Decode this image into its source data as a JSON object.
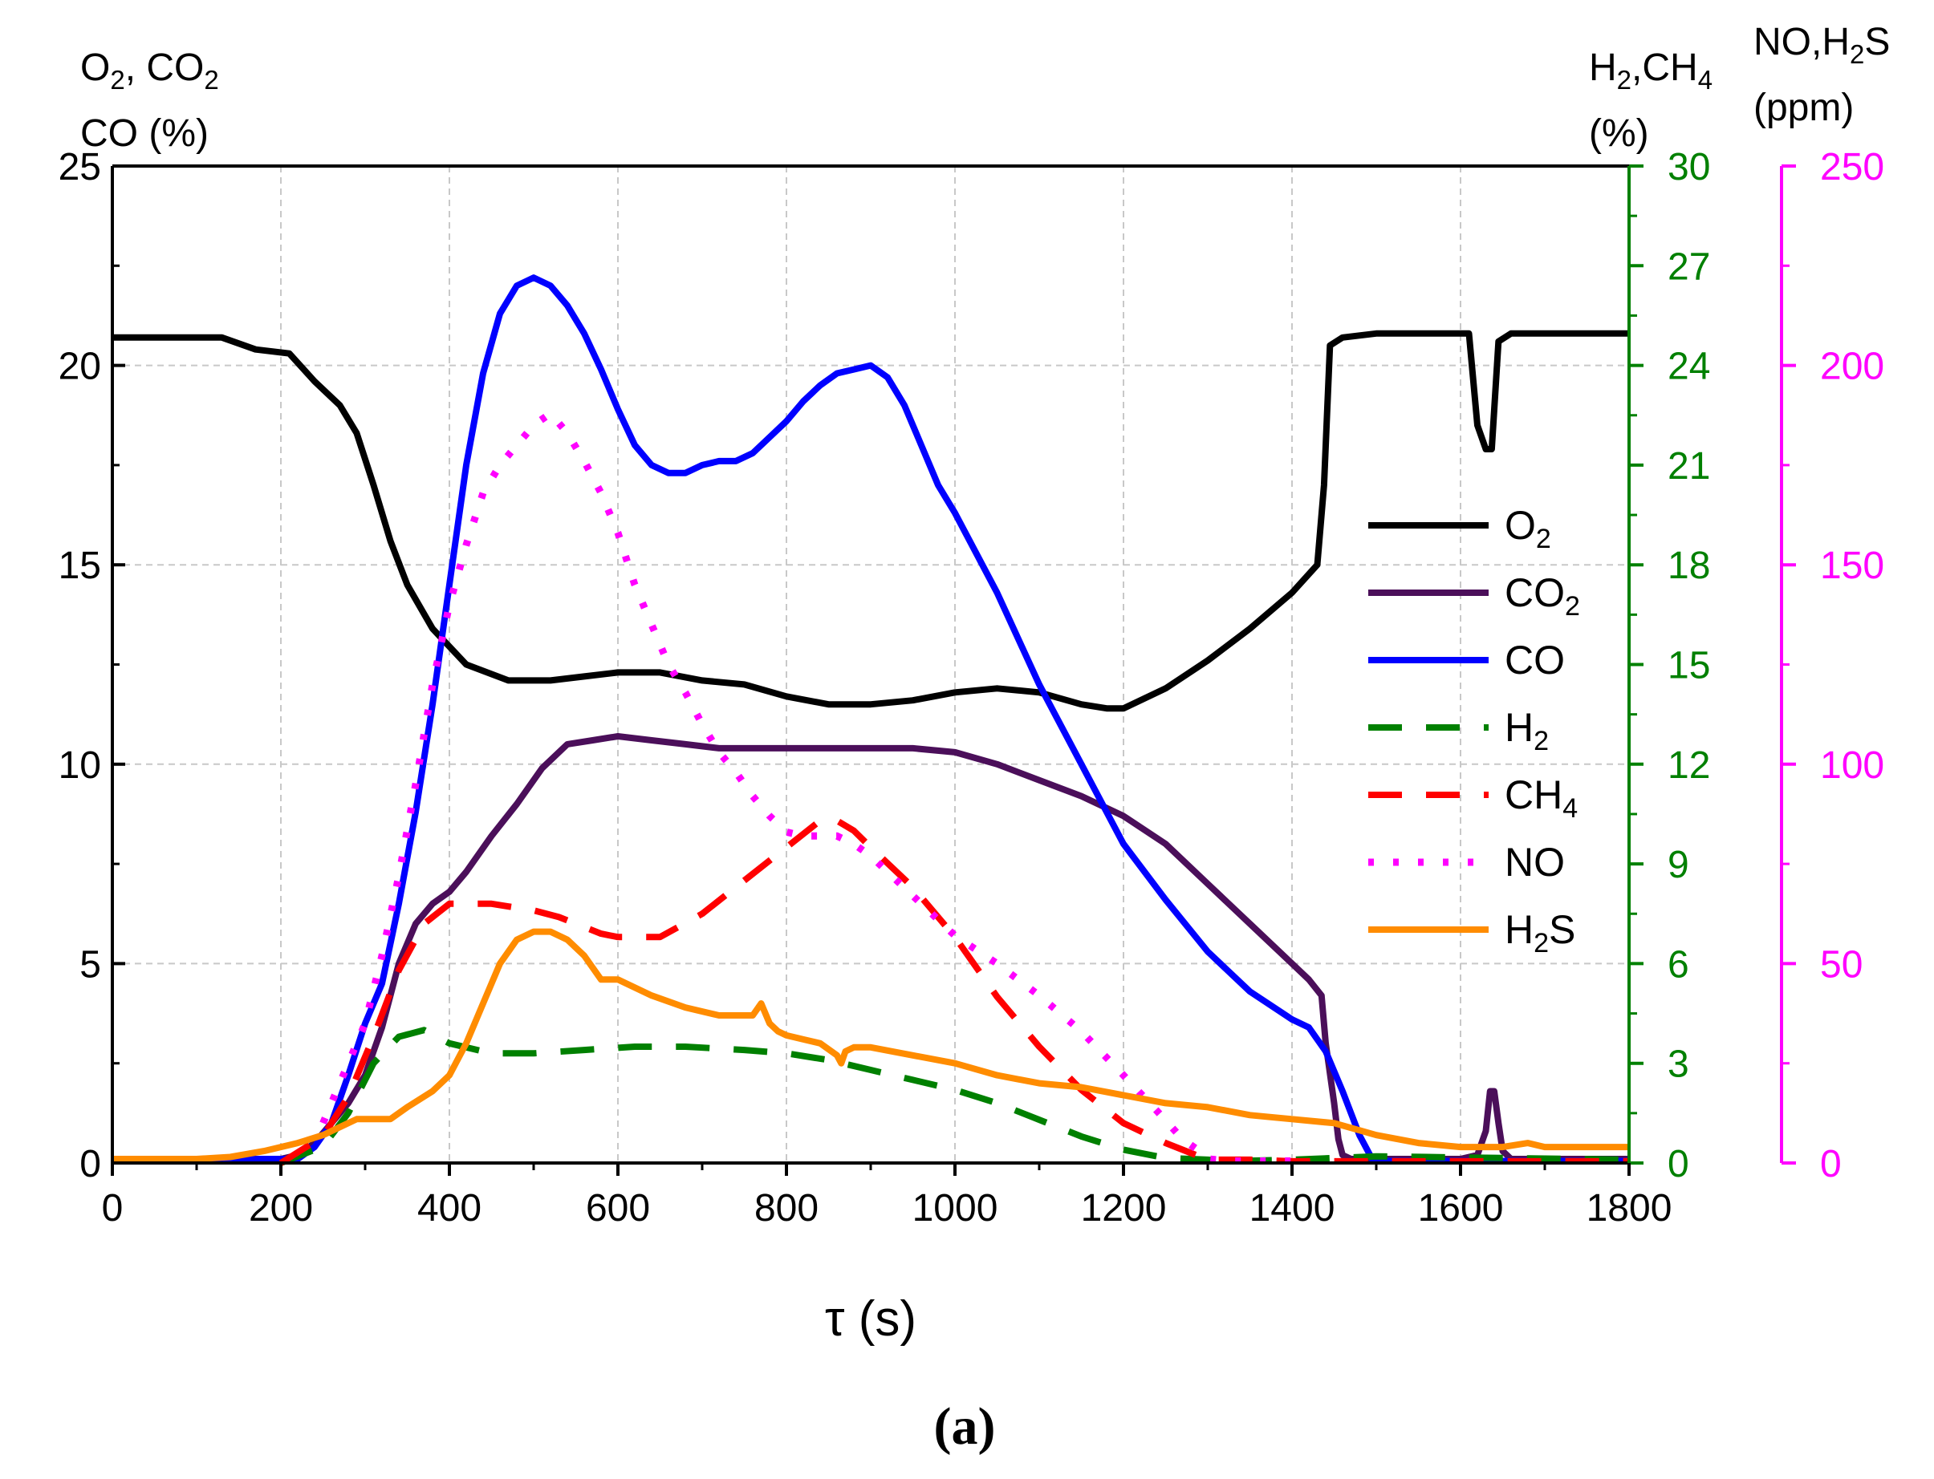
{
  "chart_data": {
    "type": "line",
    "panel_label": "(a)",
    "xlabel": "τ (s)",
    "xlim": [
      0,
      1800
    ],
    "x_ticks": [
      "0",
      "200",
      "400",
      "600",
      "800",
      "1000",
      "1200",
      "1400",
      "1600",
      "1800"
    ],
    "grid": true,
    "legend_position": "center-right",
    "axes": {
      "left": {
        "label_line1": {
          "parts": [
            {
              "t": "O",
              "sub": false
            },
            {
              "t": "2",
              "sub": true
            },
            {
              "t": ", CO",
              "sub": false
            },
            {
              "t": "2",
              "sub": true
            }
          ]
        },
        "label_line2": "CO (%)",
        "ylim": [
          0,
          25
        ],
        "ticks": [
          "0",
          "5",
          "10",
          "15",
          "20",
          "25"
        ],
        "color": "#000000"
      },
      "right1": {
        "label_line1": {
          "parts": [
            {
              "t": "H",
              "sub": false
            },
            {
              "t": "2",
              "sub": true
            },
            {
              "t": ",CH",
              "sub": false
            },
            {
              "t": "4",
              "sub": true
            }
          ]
        },
        "label_line2": "(%)",
        "ylim": [
          0,
          30
        ],
        "ticks": [
          "0",
          "3",
          "6",
          "9",
          "12",
          "15",
          "18",
          "21",
          "24",
          "27",
          "30"
        ],
        "color": "#008000"
      },
      "right2": {
        "label_line1": {
          "parts": [
            {
              "t": "NO,H",
              "sub": false
            },
            {
              "t": "2",
              "sub": true
            },
            {
              "t": "S",
              "sub": false
            }
          ]
        },
        "label_line2": "(ppm)",
        "ylim": [
          0,
          250
        ],
        "ticks": [
          "0",
          "50",
          "100",
          "150",
          "200",
          "250"
        ],
        "color": "#ff00ff"
      }
    },
    "series": [
      {
        "name": "O2",
        "legend_parts": [
          {
            "t": "O",
            "sub": false
          },
          {
            "t": "2",
            "sub": true
          }
        ],
        "axis": "left",
        "color": "#000000",
        "dash": "solid",
        "x": [
          0,
          130,
          170,
          210,
          240,
          270,
          290,
          310,
          330,
          350,
          380,
          420,
          470,
          520,
          560,
          600,
          650,
          700,
          750,
          800,
          850,
          900,
          950,
          1000,
          1050,
          1100,
          1150,
          1180,
          1200,
          1250,
          1300,
          1350,
          1400,
          1430,
          1438,
          1445,
          1460,
          1500,
          1600,
          1610,
          1620,
          1630,
          1637,
          1645,
          1660,
          1800
        ],
        "y": [
          20.7,
          20.7,
          20.4,
          20.3,
          19.6,
          19.0,
          18.3,
          17.0,
          15.6,
          14.5,
          13.4,
          12.5,
          12.1,
          12.1,
          12.2,
          12.3,
          12.3,
          12.1,
          12.0,
          11.7,
          11.5,
          11.5,
          11.6,
          11.8,
          11.9,
          11.8,
          11.5,
          11.4,
          11.4,
          11.9,
          12.6,
          13.4,
          14.3,
          15.0,
          17.0,
          20.5,
          20.7,
          20.8,
          20.8,
          20.8,
          18.5,
          17.9,
          17.9,
          20.6,
          20.8,
          20.8
        ]
      },
      {
        "name": "CO2",
        "legend_parts": [
          {
            "t": "CO",
            "sub": false
          },
          {
            "t": "2",
            "sub": true
          }
        ],
        "axis": "left",
        "color": "#4b0f5a",
        "dash": "solid",
        "x": [
          0,
          200,
          220,
          240,
          260,
          280,
          300,
          320,
          340,
          360,
          380,
          400,
          420,
          450,
          480,
          510,
          540,
          570,
          600,
          640,
          680,
          720,
          760,
          800,
          850,
          900,
          950,
          1000,
          1050,
          1100,
          1150,
          1200,
          1250,
          1300,
          1350,
          1400,
          1420,
          1435,
          1440,
          1450,
          1455,
          1460,
          1470,
          1600,
          1620,
          1630,
          1635,
          1640,
          1645,
          1650,
          1660,
          1680,
          1800
        ],
        "y": [
          0.1,
          0.1,
          0.2,
          0.5,
          1.0,
          1.5,
          2.2,
          3.4,
          5.0,
          6.0,
          6.5,
          6.8,
          7.3,
          8.2,
          9.0,
          9.9,
          10.5,
          10.6,
          10.7,
          10.6,
          10.5,
          10.4,
          10.4,
          10.4,
          10.4,
          10.4,
          10.4,
          10.3,
          10.0,
          9.6,
          9.2,
          8.7,
          8.0,
          7.0,
          6.0,
          5.0,
          4.6,
          4.2,
          3.0,
          1.5,
          0.6,
          0.2,
          0.1,
          0.1,
          0.2,
          0.8,
          1.8,
          1.8,
          1.0,
          0.3,
          0.1,
          0.1,
          0.1
        ]
      },
      {
        "name": "CO",
        "legend_parts": [
          {
            "t": "CO",
            "sub": false
          }
        ],
        "axis": "left",
        "color": "#0000ff",
        "dash": "solid",
        "x": [
          0,
          220,
          240,
          260,
          280,
          300,
          320,
          340,
          360,
          380,
          400,
          420,
          440,
          460,
          480,
          500,
          520,
          540,
          560,
          580,
          600,
          620,
          640,
          660,
          680,
          700,
          720,
          740,
          760,
          780,
          800,
          820,
          840,
          860,
          880,
          900,
          920,
          940,
          960,
          980,
          1000,
          1050,
          1100,
          1150,
          1200,
          1250,
          1300,
          1350,
          1400,
          1420,
          1440,
          1460,
          1480,
          1495,
          1510,
          1800
        ],
        "y": [
          0.1,
          0.1,
          0.4,
          1.0,
          2.2,
          3.5,
          4.5,
          6.5,
          8.8,
          11.5,
          14.5,
          17.5,
          19.8,
          21.3,
          22.0,
          22.2,
          22.0,
          21.5,
          20.8,
          19.9,
          18.9,
          18.0,
          17.5,
          17.3,
          17.3,
          17.5,
          17.6,
          17.6,
          17.8,
          18.2,
          18.6,
          19.1,
          19.5,
          19.8,
          19.9,
          20.0,
          19.7,
          19.0,
          18.0,
          17.0,
          16.3,
          14.3,
          12.0,
          10.0,
          8.0,
          6.6,
          5.3,
          4.3,
          3.6,
          3.4,
          2.8,
          1.8,
          0.7,
          0.1,
          0.05,
          0.05
        ]
      },
      {
        "name": "H2",
        "legend_parts": [
          {
            "t": "H",
            "sub": false
          },
          {
            "t": "2",
            "sub": true
          }
        ],
        "axis": "right1",
        "color": "#008000",
        "dash": "dash",
        "x": [
          200,
          250,
          280,
          310,
          340,
          370,
          400,
          450,
          500,
          560,
          620,
          680,
          750,
          800,
          850,
          900,
          950,
          1000,
          1050,
          1100,
          1150,
          1200,
          1250,
          1300,
          1320,
          1400,
          1500,
          1800
        ],
        "y": [
          0.0,
          0.5,
          1.5,
          3.0,
          3.8,
          4.0,
          3.6,
          3.3,
          3.3,
          3.4,
          3.5,
          3.5,
          3.4,
          3.3,
          3.1,
          2.8,
          2.5,
          2.2,
          1.8,
          1.3,
          0.8,
          0.4,
          0.15,
          0.1,
          0.05,
          0.1,
          0.2,
          0.1
        ]
      },
      {
        "name": "CH4",
        "legend_parts": [
          {
            "t": "CH",
            "sub": false
          },
          {
            "t": "4",
            "sub": true
          }
        ],
        "axis": "right1",
        "color": "#ff0000",
        "dash": "dash",
        "x": [
          200,
          250,
          280,
          310,
          340,
          370,
          400,
          450,
          500,
          530,
          560,
          580,
          600,
          620,
          650,
          700,
          750,
          800,
          840,
          860,
          880,
          900,
          950,
          1000,
          1050,
          1100,
          1150,
          1200,
          1250,
          1290,
          1300,
          1350,
          1400,
          1500,
          1800
        ],
        "y": [
          0.0,
          0.8,
          2.0,
          3.8,
          5.8,
          7.2,
          7.8,
          7.8,
          7.6,
          7.4,
          7.1,
          6.9,
          6.8,
          6.8,
          6.8,
          7.5,
          8.5,
          9.5,
          10.3,
          10.3,
          10.0,
          9.5,
          8.3,
          6.8,
          5.0,
          3.5,
          2.2,
          1.2,
          0.6,
          0.2,
          0.1,
          0.1,
          0.05,
          0.05,
          0.05
        ]
      },
      {
        "name": "NO",
        "legend_parts": [
          {
            "t": "NO",
            "sub": false
          }
        ],
        "axis": "right2",
        "color": "#ff00ff",
        "dash": "dot",
        "x": [
          250,
          280,
          300,
          320,
          340,
          360,
          380,
          400,
          420,
          440,
          460,
          480,
          500,
          520,
          540,
          560,
          580,
          600,
          620,
          640,
          660,
          680,
          700,
          720,
          740,
          760,
          780,
          800,
          820,
          840,
          860,
          880,
          900,
          920,
          940,
          960,
          980,
          1000,
          1050,
          1100,
          1150,
          1200,
          1240,
          1270,
          1290,
          1300,
          1330,
          1400
        ],
        "y": [
          10,
          25,
          35,
          52,
          72,
          95,
          120,
          140,
          155,
          168,
          175,
          180,
          185,
          188,
          183,
          176,
          168,
          158,
          145,
          135,
          125,
          118,
          110,
          103,
          98,
          92,
          87,
          83,
          82,
          82,
          82,
          80,
          77,
          73,
          69,
          65,
          61,
          57,
          50,
          42,
          33,
          22,
          13,
          6,
          3,
          1,
          0.5,
          0.5
        ]
      },
      {
        "name": "H2S",
        "legend_parts": [
          {
            "t": "H",
            "sub": false
          },
          {
            "t": "2",
            "sub": true
          },
          {
            "t": "S",
            "sub": false
          }
        ],
        "axis": "right2",
        "color": "#ff8c00",
        "dash": "solid",
        "x": [
          0,
          100,
          140,
          180,
          220,
          250,
          270,
          290,
          310,
          330,
          350,
          380,
          400,
          420,
          440,
          460,
          480,
          500,
          520,
          540,
          560,
          580,
          600,
          640,
          680,
          720,
          760,
          770,
          780,
          790,
          800,
          820,
          840,
          860,
          865,
          870,
          880,
          900,
          950,
          1000,
          1050,
          1100,
          1150,
          1200,
          1250,
          1300,
          1350,
          1400,
          1450,
          1500,
          1550,
          1600,
          1650,
          1680,
          1700,
          1800
        ],
        "y": [
          1,
          1,
          1.5,
          3,
          5,
          7,
          9,
          11,
          11,
          11,
          14,
          18,
          22,
          30,
          40,
          50,
          56,
          58,
          58,
          56,
          52,
          46,
          46,
          42,
          39,
          37,
          37,
          40,
          35,
          33,
          32,
          31,
          30,
          27,
          25,
          28,
          29,
          29,
          27,
          25,
          22,
          20,
          19,
          17,
          15,
          14,
          12,
          11,
          10,
          7,
          5,
          4,
          4,
          5,
          4,
          4
        ]
      }
    ]
  }
}
